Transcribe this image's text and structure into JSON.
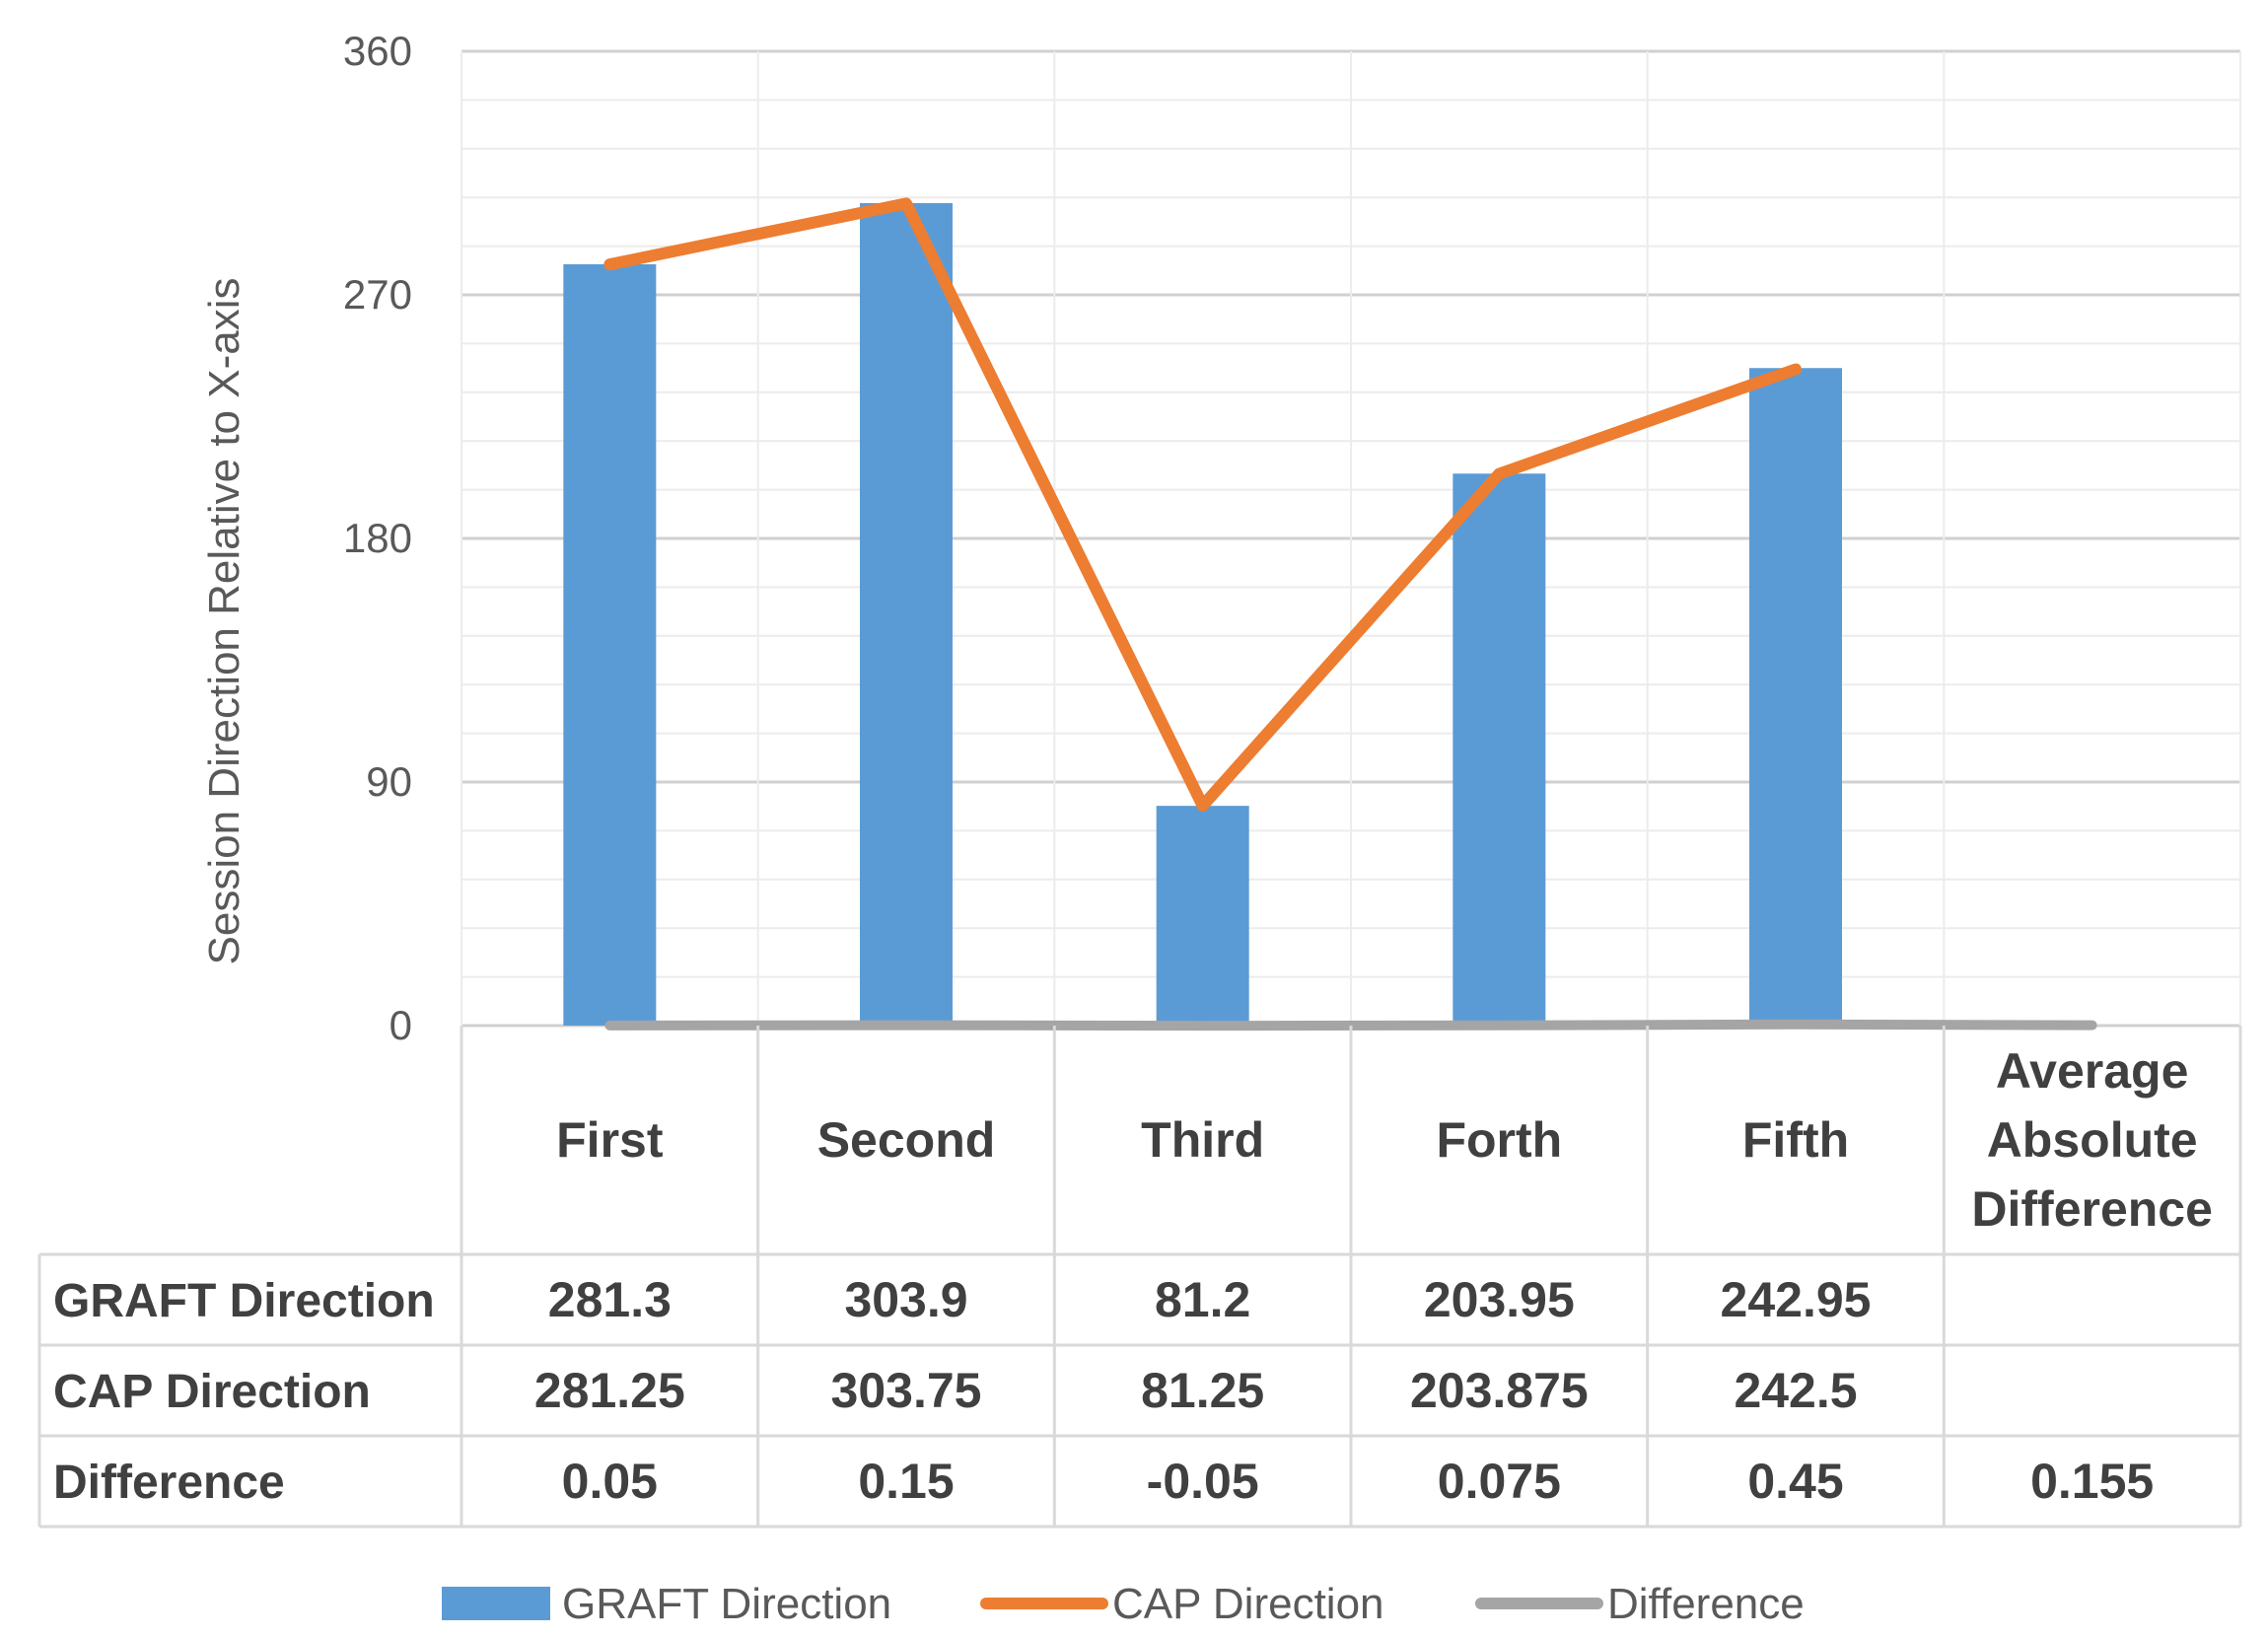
{
  "chart_data": {
    "type": "bar",
    "title": "",
    "xlabel": "",
    "ylabel": "Session Direction Relative to X-axis",
    "ylim": [
      0,
      360
    ],
    "yticks": [
      "0",
      "90",
      "180",
      "270",
      "360"
    ],
    "grid": true,
    "legend_position": "bottom",
    "categories": [
      "First",
      "Second",
      "Third",
      "Forth",
      "Fifth",
      "Average Absolute Difference"
    ],
    "series": [
      {
        "name": "GRAFT Direction",
        "type": "bar",
        "color": "#5B9BD5",
        "values": [
          281.3,
          303.9,
          81.2,
          203.95,
          242.95,
          null
        ],
        "labels": [
          "281.3",
          "303.9",
          "81.2",
          "203.95",
          "242.95",
          ""
        ]
      },
      {
        "name": "CAP Direction",
        "type": "line",
        "color": "#ED7D31",
        "values": [
          281.25,
          303.75,
          81.25,
          203.875,
          242.5,
          null
        ],
        "labels": [
          "281.25",
          "303.75",
          "81.25",
          "203.875",
          "242.5",
          ""
        ]
      },
      {
        "name": "Difference",
        "type": "line",
        "color": "#A5A5A5",
        "values": [
          0.05,
          0.15,
          -0.05,
          0.075,
          0.45,
          0.155
        ],
        "labels": [
          "0.05",
          "0.15",
          "-0.05",
          "0.075",
          "0.45",
          "0.155"
        ]
      }
    ]
  }
}
